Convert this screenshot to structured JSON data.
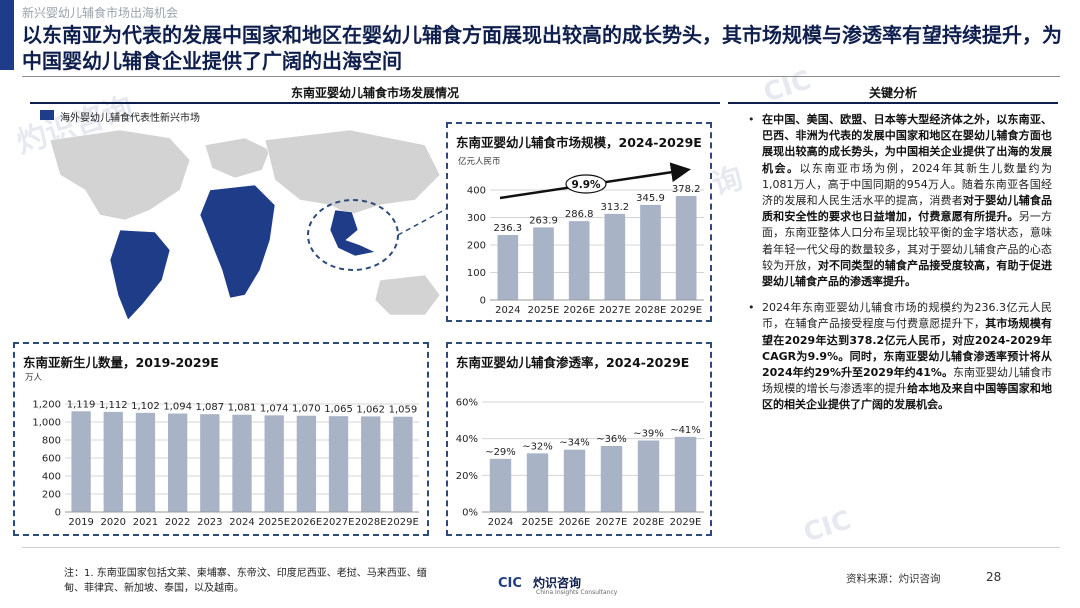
{
  "header": {
    "kicker": "新兴婴幼儿辅食市场出海机会",
    "headline": "以东南亚为代表的发展中国家和地区在婴幼儿辅食方面展现出较高的成长势头，其市场规模与渗透率有望持续提升，为中国婴幼儿辅食企业提供了广阔的出海空间"
  },
  "left_section": {
    "title": "东南亚婴幼儿辅食市场发展情况",
    "legend_label": "海外婴幼儿辅食代表性新兴市场"
  },
  "right_section": {
    "title": "关键分析",
    "bullet1": {
      "p1": "在中国、美国、欧盟、日本等大型经济体之外，以东南亚、巴西、非洲为代表的发展中国家和地区在婴幼儿辅食方面也展现出较高的成长势头，为中国相关企业提供了出海的发展机会。",
      "p2": "以东南亚市场为例，2024年其新生儿数量约为1,081万人，高于中国同期的954万人。随着东南亚各国经济的发展和人民生活水平的提高，消费者",
      "p3": "对于婴幼儿辅食品质和安全性的要求也日益增加，付费意愿有所提升。",
      "p4": "另一方面，东南亚整体人口分布呈现比较平衡的金字塔状态，意味着年轻一代父母的数量较多，其对于婴幼儿辅食产品的心态较为开放，",
      "p5": "对不同类型的辅食产品接受度较高，有助于促进婴幼儿辅食产品的渗透率提升。"
    },
    "bullet2": {
      "p1": "2024年东南亚婴幼儿辅食市场的规模约为236.3亿元人民币，在辅食产品接受程度与付费意愿提升下，",
      "p2": "其市场规模有望在2029年达到378.2亿元人民币，对应2024-2029年CAGR为9.9%。同时，东南亚婴幼儿辅食渗透率预计将从2024年约29%升至2029年约41%。",
      "p3": "东南亚婴幼儿辅食市场规模的增长与渗透率的提升",
      "p4": "给本地及来自中国等国家和地区的相关企业提供了广阔的发展机会。"
    }
  },
  "footer": {
    "note_line1": "注：1. 东南亚国家包括文莱、柬埔寨、东帝汶、印度尼西亚、老挝、马来西亚、缅",
    "note_line2": "甸、菲律宾、新加坡、泰国，以及越南。",
    "logo_mark": "CIC",
    "logo_cn": "灼识咨询",
    "logo_en": "China Insights Consultancy",
    "source": "资料来源：灼识咨询",
    "page": "28"
  },
  "watermark": {
    "cn": "灼识咨询",
    "en": "China Insights Consultancy",
    "mark": "CIC"
  },
  "colors": {
    "navy": "#1f3c88",
    "bar": "#a9b3c6",
    "dash": "#2c4a7a"
  },
  "chart_data": [
    {
      "type": "bar",
      "title": "东南亚婴幼儿辅食市场规模，2024-2029E",
      "unit": "亿元人民币",
      "categories": [
        "2024",
        "2025E",
        "2026E",
        "2027E",
        "2028E",
        "2029E"
      ],
      "values": [
        236.3,
        263.9,
        286.8,
        313.2,
        345.9,
        378.2
      ],
      "value_labels": [
        "236.3",
        "263.9",
        "286.8",
        "313.2",
        "345.9",
        "378.2"
      ],
      "yticks": [
        "0",
        "100",
        "200",
        "300",
        "400"
      ],
      "ylim": [
        0,
        400
      ],
      "annotation": "9.9%",
      "grid": true
    },
    {
      "type": "bar",
      "title": "东南亚新生儿数量，2019-2029E",
      "unit": "万人",
      "categories": [
        "2019",
        "2020",
        "2021",
        "2022",
        "2023",
        "2024",
        "2025E",
        "2026E",
        "2027E",
        "2028E",
        "2029E"
      ],
      "values": [
        1119,
        1112,
        1102,
        1094,
        1087,
        1081,
        1074,
        1070,
        1065,
        1062,
        1059
      ],
      "value_labels": [
        "1,119",
        "1,112",
        "1,102",
        "1,094",
        "1,087",
        "1,081",
        "1,074",
        "1,070",
        "1,065",
        "1,062",
        "1,059"
      ],
      "yticks": [
        "0",
        "200",
        "400",
        "600",
        "800",
        "1,000",
        "1,200"
      ],
      "ylim": [
        0,
        1200
      ],
      "grid": true
    },
    {
      "type": "bar",
      "title": "东南亚婴幼儿辅食渗透率，2024-2029E",
      "categories": [
        "2024",
        "2025E",
        "2026E",
        "2027E",
        "2028E",
        "2029E"
      ],
      "values": [
        29,
        32,
        34,
        36,
        39,
        41
      ],
      "value_labels": [
        "~29%",
        "~32%",
        "~34%",
        "~36%",
        "~39%",
        "~41%"
      ],
      "yticks": [
        "0%",
        "20%",
        "40%",
        "60%"
      ],
      "ylim": [
        0,
        60
      ],
      "grid": true
    }
  ]
}
